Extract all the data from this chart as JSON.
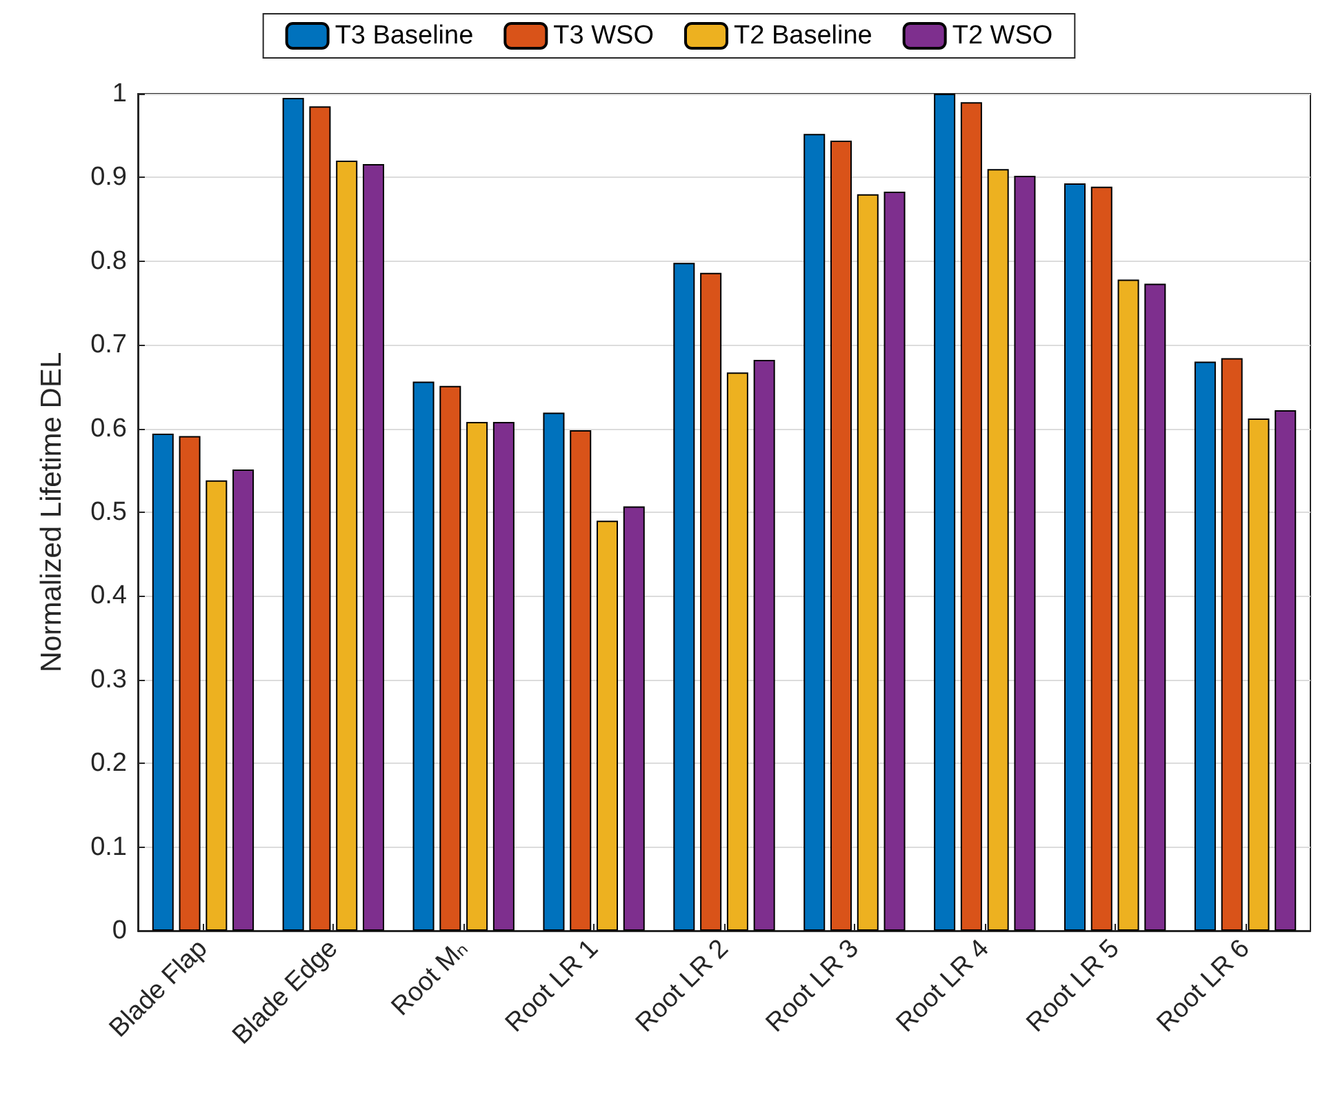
{
  "chart_data": {
    "type": "bar",
    "ylabel": "Normalized Lifetime DEL",
    "categories": [
      "Blade Flap",
      "Blade Edge",
      "Root Mₙ",
      "Root LR 1",
      "Root LR 2",
      "Root LR 3",
      "Root LR 4",
      "Root LR 5",
      "Root LR 6"
    ],
    "series": [
      {
        "name": "T3 Baseline",
        "color": "#0072bd",
        "values": [
          0.594,
          0.995,
          0.656,
          0.619,
          0.798,
          0.952,
          1.0,
          0.893,
          0.68
        ]
      },
      {
        "name": "T3 WSO",
        "color": "#d95319",
        "values": [
          0.591,
          0.985,
          0.651,
          0.598,
          0.786,
          0.944,
          0.99,
          0.889,
          0.684
        ]
      },
      {
        "name": "T2 Baseline",
        "color": "#edb120",
        "values": [
          0.538,
          0.92,
          0.608,
          0.49,
          0.667,
          0.88,
          0.91,
          0.778,
          0.612
        ]
      },
      {
        "name": "T2 WSO",
        "color": "#7e2f8e",
        "values": [
          0.551,
          0.916,
          0.608,
          0.507,
          0.682,
          0.883,
          0.902,
          0.773,
          0.622
        ]
      }
    ],
    "ylim": [
      0,
      1
    ],
    "yticks": [
      0,
      0.1,
      0.2,
      0.3,
      0.4,
      0.5,
      0.6,
      0.7,
      0.8,
      0.9,
      1
    ],
    "grid": "y",
    "legend": "top"
  }
}
